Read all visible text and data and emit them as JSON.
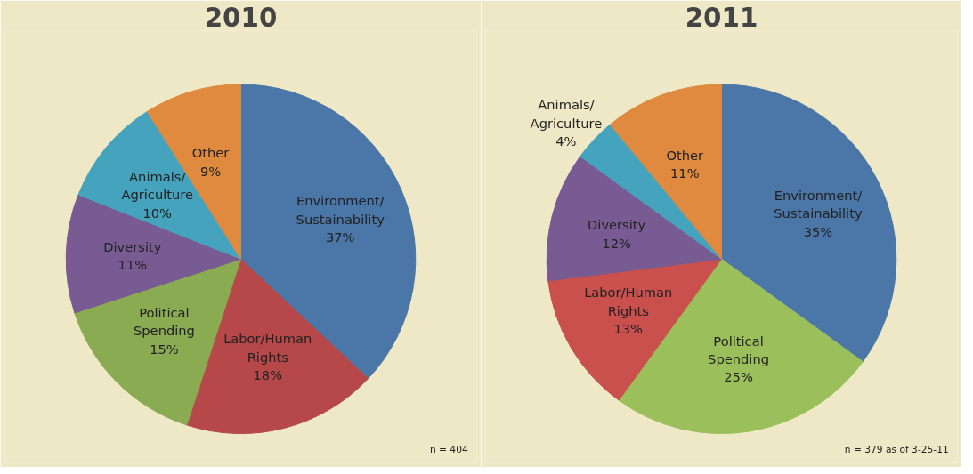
{
  "chart_data": [
    {
      "type": "pie",
      "title": "2010",
      "categories": [
        "Environment/\nSustainability",
        "Labor/Human\nRights",
        "Political\nSpending",
        "Diversity",
        "Animals/\nAgriculture",
        "Other"
      ],
      "values": [
        37,
        18,
        15,
        11,
        10,
        9
      ],
      "value_labels": [
        "37%",
        "18%",
        "15%",
        "11%",
        "10%",
        "9%"
      ],
      "colors": [
        "#4a76a8",
        "#b6484a",
        "#8aab52",
        "#785b92",
        "#45a3bd",
        "#df8a3e"
      ],
      "annotations": [
        "n = 404"
      ]
    },
    {
      "type": "pie",
      "title": "2011",
      "categories": [
        "Environment/\nSustainability",
        "Political\nSpending",
        "Labor/Human\nRights",
        "Diversity",
        "Animals/\nAgriculture",
        "Other"
      ],
      "values": [
        35,
        25,
        13,
        12,
        4,
        11
      ],
      "value_labels": [
        "35%",
        "25%",
        "13%",
        "12%",
        "4%",
        "11%"
      ],
      "colors": [
        "#4a76a8",
        "#9bbf5a",
        "#c9504c",
        "#785b92",
        "#45a3bd",
        "#df8a3e"
      ],
      "annotations": [
        "n = 379 as of 3-25-11"
      ]
    }
  ]
}
